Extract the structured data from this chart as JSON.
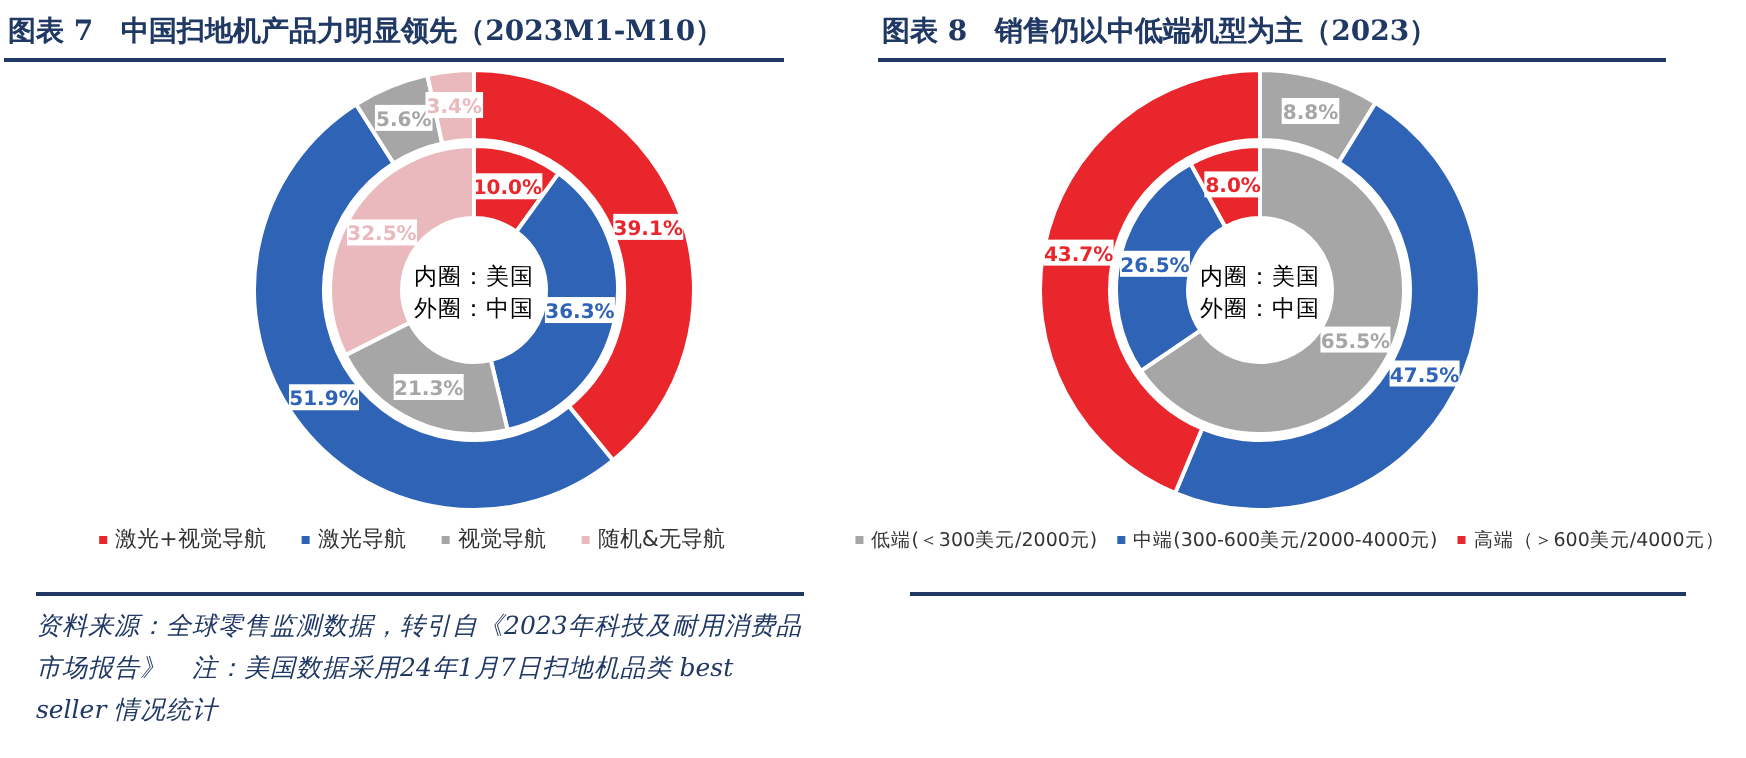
{
  "chart_data": [
    {
      "type": "donut",
      "title": "图表 7　中国扫地机产品力明显领先（2023M1-M10）",
      "categories": [
        "激光+视觉导航",
        "激光导航",
        "视觉导航",
        "随机&无导航"
      ],
      "legend": "bottom",
      "series": [
        {
          "values": [
            10.0,
            36.3,
            21.3,
            32.5
          ],
          "colors": [
            "#e8262c",
            "#2e63b6",
            "#a6a6a6",
            "#e9b9bd"
          ],
          "value_labels": [
            "10.0%",
            "36.3%",
            "21.3%",
            "32.5%"
          ]
        },
        {
          "values": [
            39.1,
            51.9,
            5.6,
            3.4
          ],
          "colors": [
            "#e8262c",
            "#2e63b6",
            "#a6a6a6",
            "#e9b9bd"
          ],
          "value_labels": [
            "39.1%",
            "51.9%",
            "5.6%",
            "3.4%"
          ]
        }
      ],
      "annotations": [
        "内圈：美国",
        "外圈：中国",
        "资料来源：全球零售监测数据，转引自《2023年科技及耐用消费品市场报告》　注：美国数据采用24年1月7日扫地机品类 best seller 情况统计"
      ]
    },
    {
      "type": "donut",
      "title": "图表 8　销售仍以中低端机型为主（2023）",
      "categories": [
        "低端(＜300美元/2000元)",
        "中端(300-600美元/2000-4000元)",
        "高端（＞600美元/4000元）"
      ],
      "legend": "bottom",
      "series": [
        {
          "values": [
            65.5,
            26.5,
            8.0
          ],
          "colors": [
            "#a6a6a6",
            "#2e63b6",
            "#e8262c"
          ],
          "value_labels": [
            "65.5%",
            "26.5%",
            "8.0%"
          ]
        },
        {
          "values": [
            8.8,
            47.5,
            43.7
          ],
          "colors": [
            "#a6a6a6",
            "#2e63b6",
            "#e8262c"
          ],
          "value_labels": [
            "8.8%",
            "47.5%",
            "43.7%"
          ]
        }
      ],
      "annotations": [
        "内圈：美国",
        "外圈：中国"
      ]
    }
  ]
}
